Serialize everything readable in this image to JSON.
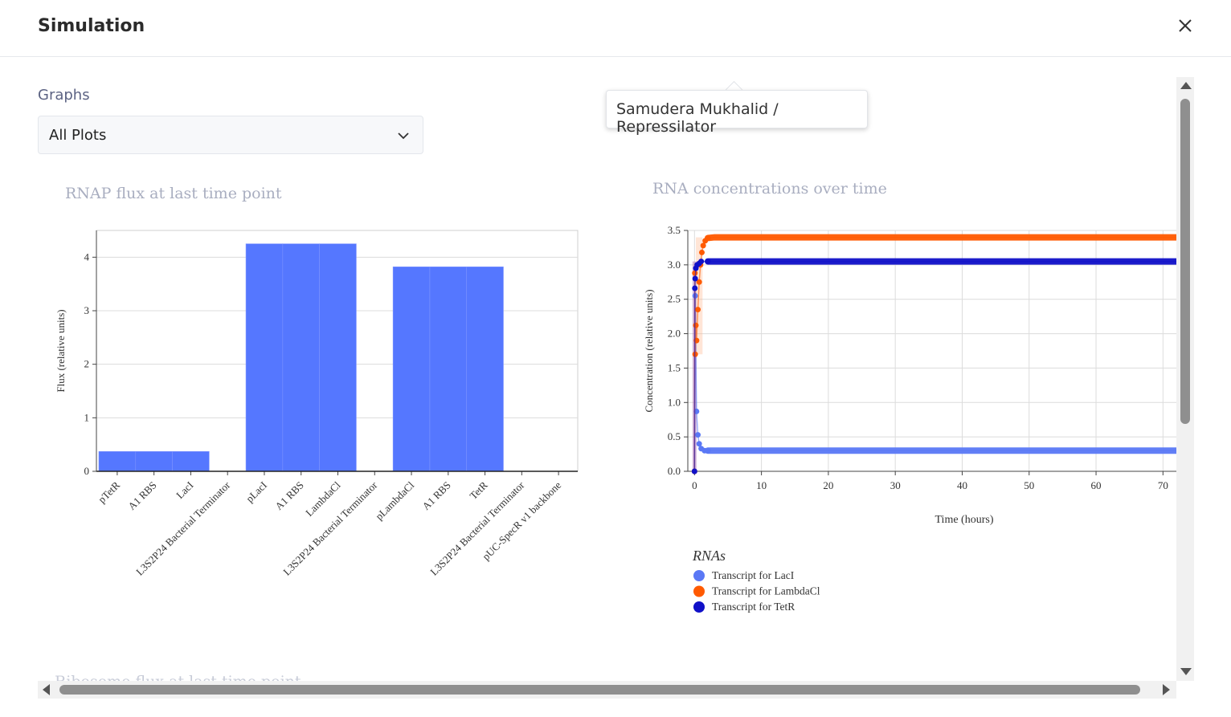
{
  "dialog": {
    "title": "Simulation"
  },
  "graphs": {
    "label": "Graphs",
    "selected": "All Plots"
  },
  "tooltip": {
    "text": "Samudera Mukhalid / Repressilator"
  },
  "bar_chart": {
    "title": "RNAP flux at last time point",
    "ylabel": "Flux (relative units)",
    "y_ticks": [
      "0",
      "1",
      "2",
      "3",
      "4"
    ]
  },
  "line_chart": {
    "title": "RNA concentrations over time",
    "xlabel": "Time (hours)",
    "ylabel": "Concentration (relative units)",
    "x_ticks": [
      "0",
      "10",
      "20",
      "30",
      "40",
      "50",
      "60",
      "70"
    ],
    "y_ticks": [
      "0.0",
      "0.5",
      "1.0",
      "1.5",
      "2.0",
      "2.5",
      "3.0",
      "3.5"
    ],
    "legend_title": "RNAs"
  },
  "next_chart": {
    "title_fragment": "Ribosome flux at last time point"
  },
  "chart_data": [
    {
      "type": "bar",
      "title": "RNAP flux at last time point",
      "xlabel": "",
      "ylabel": "Flux (relative units)",
      "ylim": [
        0,
        4.5
      ],
      "categories": [
        "pTetR",
        "A1 RBS",
        "LacI",
        "L3S2P24 Bacterial Terminator",
        "pLacI",
        "A1 RBS",
        "LambdaCl",
        "L3S2P24 Bacterial Terminator",
        "pLambdaCl",
        "A1 RBS",
        "TetR",
        "L3S2P24 Bacterial Terminator",
        "pUC-SpecR v1 backbone"
      ],
      "values": [
        0.37,
        0.37,
        0.37,
        0,
        4.25,
        4.25,
        4.25,
        0,
        3.82,
        3.82,
        3.82,
        0,
        0
      ],
      "color": "#5577ff",
      "grid": true
    },
    {
      "type": "line",
      "title": "RNA concentrations over time",
      "xlabel": "Time (hours)",
      "ylabel": "Concentration (relative units)",
      "xlim": [
        -1,
        72
      ],
      "ylim": [
        0,
        3.5
      ],
      "grid": true,
      "legend": {
        "title": "RNAs",
        "position": "bottom-left"
      },
      "series": [
        {
          "name": "Transcript for LacI",
          "color": "#5a78f5",
          "x": [
            0,
            0.1,
            0.3,
            0.5,
            0.7,
            1,
            1.5,
            2,
            5,
            10,
            20,
            30,
            40,
            50,
            60,
            70,
            72
          ],
          "y": [
            0,
            2.55,
            0.87,
            0.53,
            0.4,
            0.33,
            0.3,
            0.3,
            0.3,
            0.3,
            0.3,
            0.3,
            0.3,
            0.3,
            0.3,
            0.3,
            0.3
          ]
        },
        {
          "name": "Transcript for LambdaCl",
          "color": "#ff5a00",
          "x": [
            0,
            0.05,
            0.1,
            0.2,
            0.3,
            0.5,
            0.7,
            0.9,
            1.1,
            1.3,
            1.6,
            2,
            3,
            5,
            10,
            20,
            30,
            40,
            50,
            60,
            70,
            72
          ],
          "y": [
            0,
            2.88,
            1.7,
            2.12,
            1.9,
            2.35,
            2.75,
            3.0,
            3.18,
            3.28,
            3.35,
            3.39,
            3.4,
            3.4,
            3.4,
            3.4,
            3.4,
            3.4,
            3.4,
            3.4,
            3.4,
            3.4
          ]
        },
        {
          "name": "Transcript for TetR",
          "color": "#1010c8",
          "x": [
            0,
            0.05,
            0.1,
            0.2,
            0.4,
            0.7,
            1,
            2,
            5,
            10,
            20,
            30,
            40,
            50,
            60,
            70,
            72
          ],
          "y": [
            0,
            2.66,
            2.8,
            2.95,
            3.0,
            3.02,
            3.05,
            3.05,
            3.05,
            3.05,
            3.05,
            3.05,
            3.05,
            3.05,
            3.05,
            3.05,
            3.05
          ]
        }
      ]
    }
  ]
}
